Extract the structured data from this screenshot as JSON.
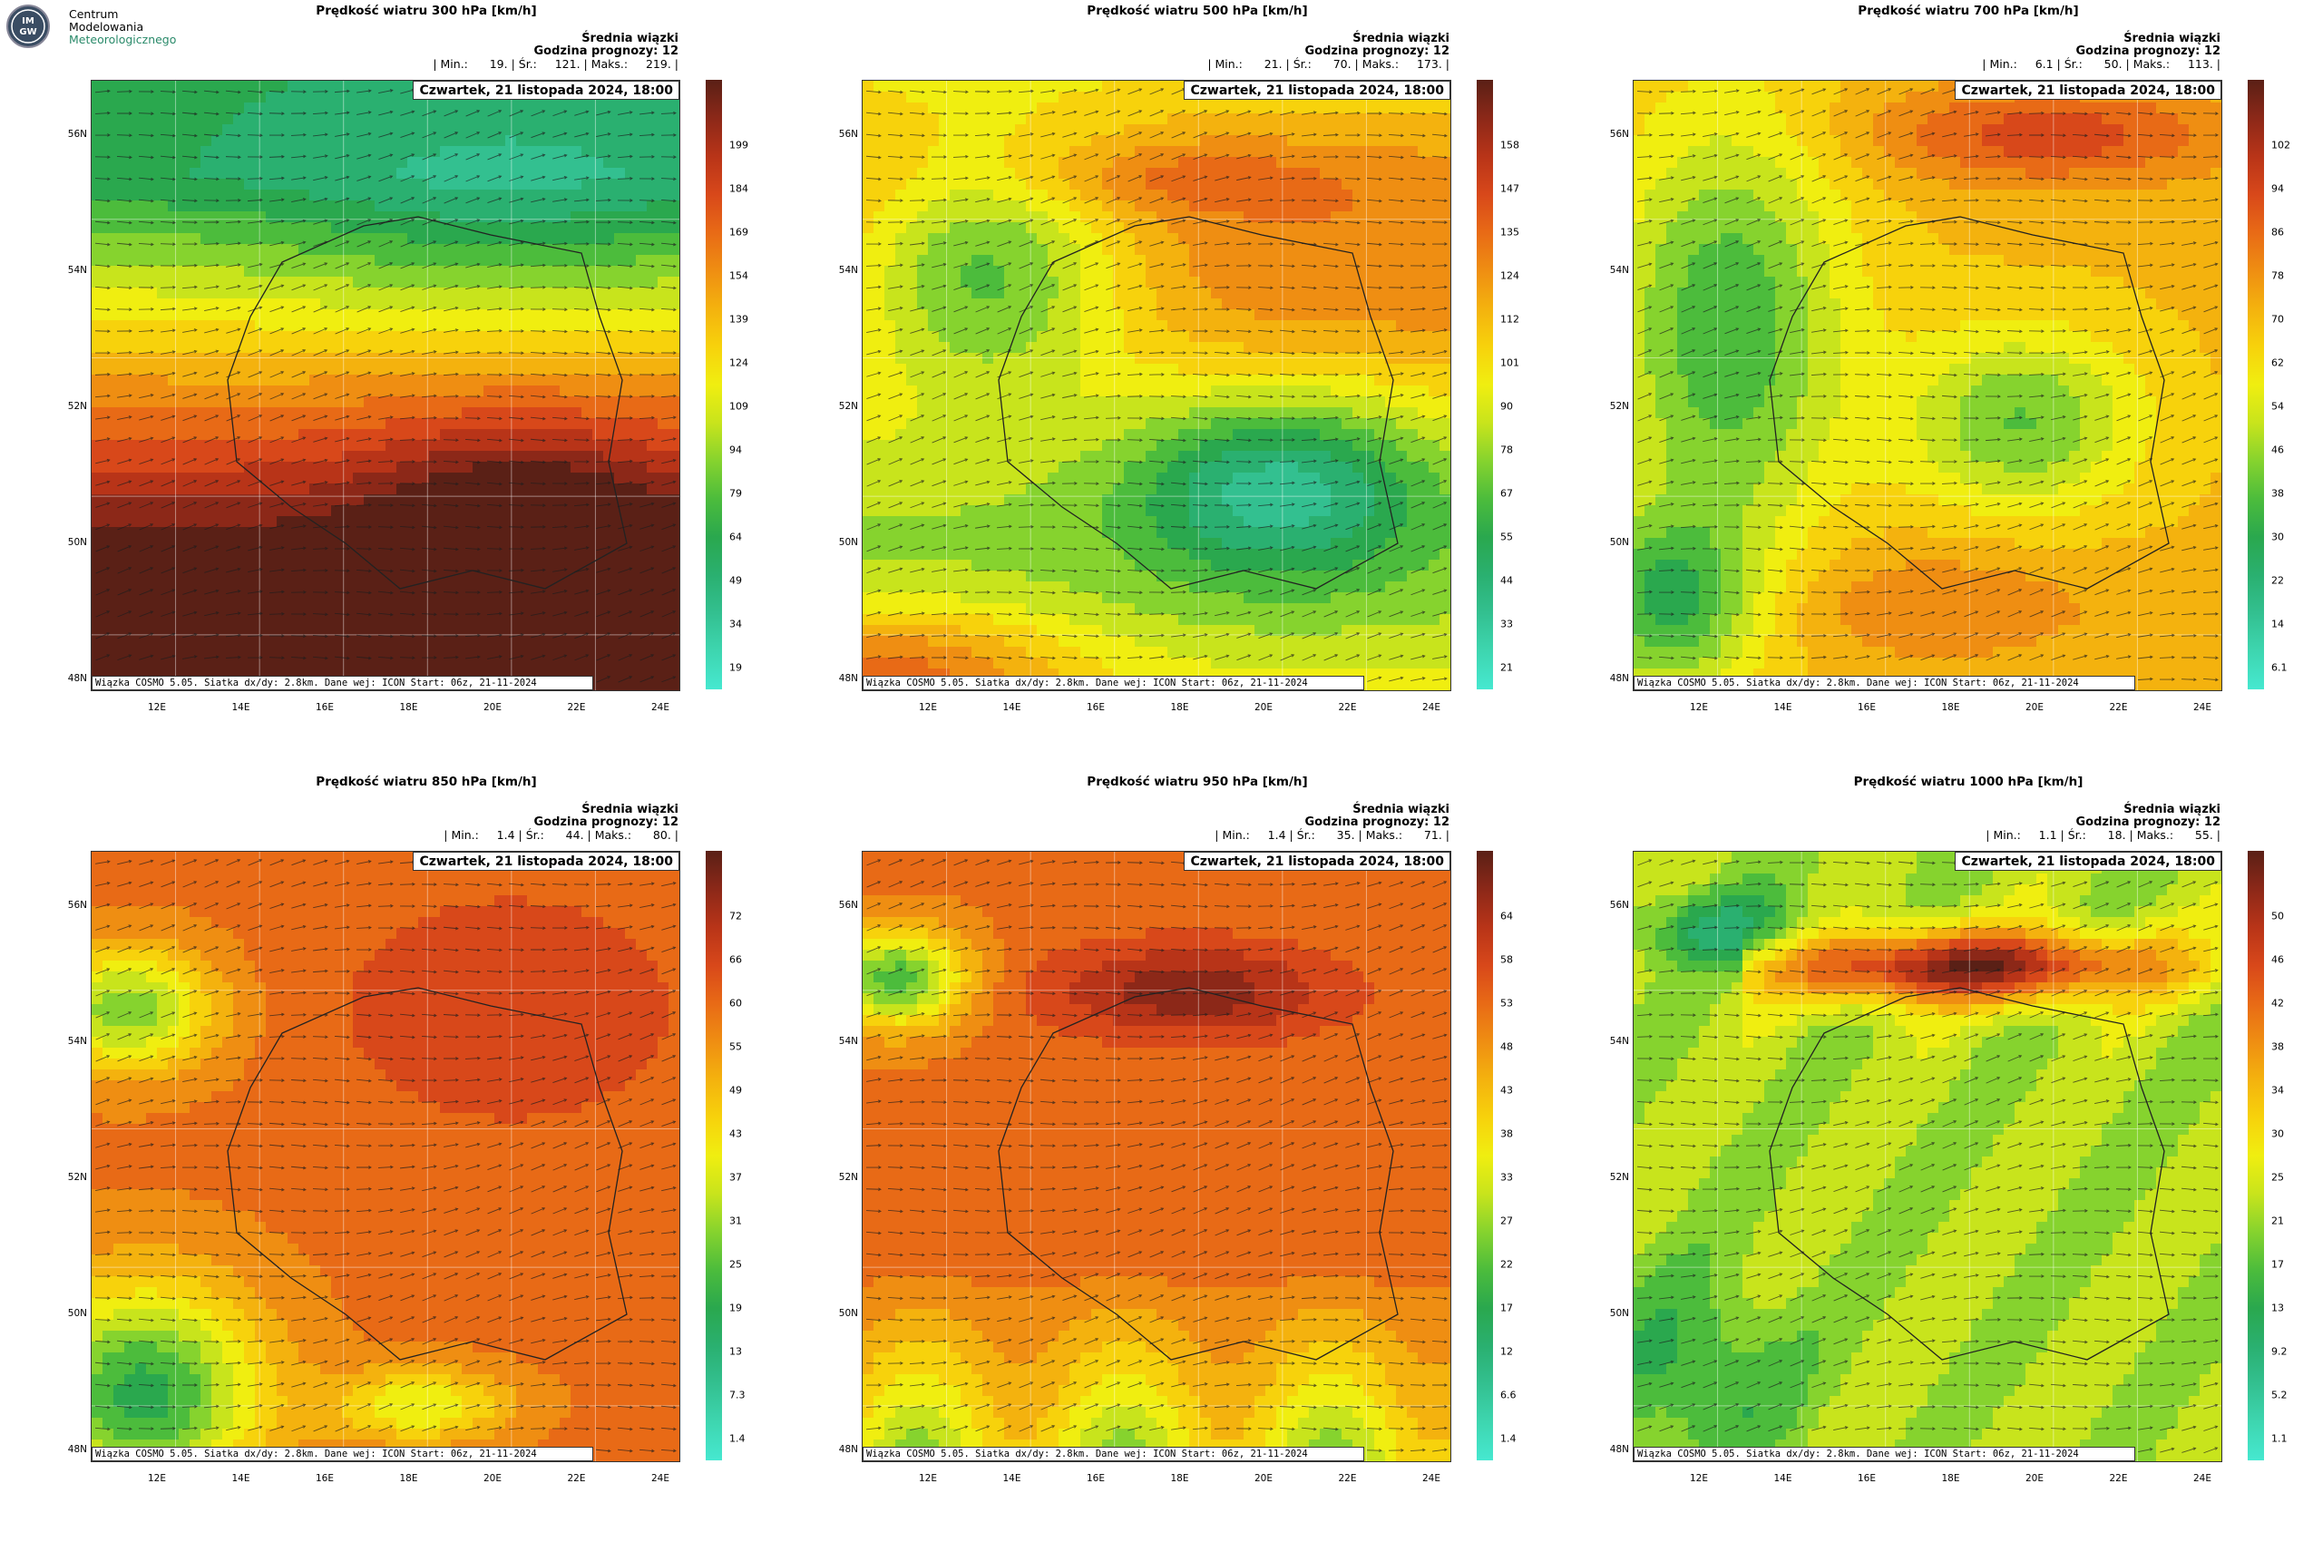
{
  "header": {
    "logo_letters": "IMGW",
    "org_line1": "Centrum",
    "org_line2": "Modelowania",
    "org_line3": "Meteorologicznego"
  },
  "common": {
    "ensemble_label": "Średnia wiązki",
    "forecast_hour": "Godzina prognozy: 12",
    "date": "Czwartek, 21 listopada 2024, 18:00",
    "footer": "Wiązka COSMO 5.05. Siatka dx/dy: 2.8km. Dane wej: ICON Start: 06z, 21-11-2024",
    "lat_labels": [
      "56N",
      "54N",
      "52N",
      "50N",
      "48N"
    ],
    "lon_labels": [
      "12E",
      "14E",
      "16E",
      "18E",
      "20E",
      "22E",
      "24E"
    ]
  },
  "colors": {
    "scale": [
      "#46e8d0",
      "#3ed6b0",
      "#33c090",
      "#2ab070",
      "#2aa84e",
      "#4cbc3c",
      "#86d32e",
      "#c8e41c",
      "#f0ee10",
      "#f7d20c",
      "#f4b20e",
      "#ef8e12",
      "#e86a16",
      "#d8481a",
      "#b83418",
      "#8c2818",
      "#5a2016"
    ]
  },
  "panels": [
    {
      "title": "Prędkość wiatru 300 hPa [km/h]",
      "stats": "| Min.:      19. | Śr.:     121. | Maks.:     219. |",
      "scale_ticks": [
        "199",
        "184",
        "169",
        "154",
        "139",
        "124",
        "109",
        "94",
        "79",
        "64",
        "49",
        "34",
        "19"
      ],
      "pattern": "p300"
    },
    {
      "title": "Prędkość wiatru 500 hPa [km/h]",
      "stats": "| Min.:      21. | Śr.:      70. | Maks.:     173. |",
      "scale_ticks": [
        "158",
        "147",
        "135",
        "124",
        "112",
        "101",
        "90",
        "78",
        "67",
        "55",
        "44",
        "33",
        "21"
      ],
      "pattern": "p500"
    },
    {
      "title": "Prędkość wiatru 700 hPa [km/h]",
      "stats": "| Min.:     6.1 | Śr.:      50. | Maks.:     113. |",
      "scale_ticks": [
        "102",
        "94",
        "86",
        "78",
        "70",
        "62",
        "54",
        "46",
        "38",
        "30",
        "22",
        "14",
        "6.1"
      ],
      "pattern": "p700"
    },
    {
      "title": "Prędkość wiatru 850 hPa [km/h]",
      "stats": "| Min.:     1.4 | Śr.:      44. | Maks.:      80. |",
      "scale_ticks": [
        "72",
        "66",
        "60",
        "55",
        "49",
        "43",
        "37",
        "31",
        "25",
        "19",
        "13",
        "7.3",
        "1.4"
      ],
      "pattern": "p850"
    },
    {
      "title": "Prędkość wiatru 950 hPa [km/h]",
      "stats": "| Min.:     1.4 | Śr.:      35. | Maks.:      71. |",
      "scale_ticks": [
        "64",
        "58",
        "53",
        "48",
        "43",
        "38",
        "33",
        "27",
        "22",
        "17",
        "12",
        "6.6",
        "1.4"
      ],
      "pattern": "p950"
    },
    {
      "title": "Prędkość wiatru 1000 hPa [km/h]",
      "stats": "| Min.:     1.1 | Śr.:      18. | Maks.:      55. |",
      "scale_ticks": [
        "50",
        "46",
        "42",
        "38",
        "34",
        "30",
        "25",
        "21",
        "17",
        "13",
        "9.2",
        "5.2",
        "1.1"
      ],
      "pattern": "p1000"
    }
  ]
}
